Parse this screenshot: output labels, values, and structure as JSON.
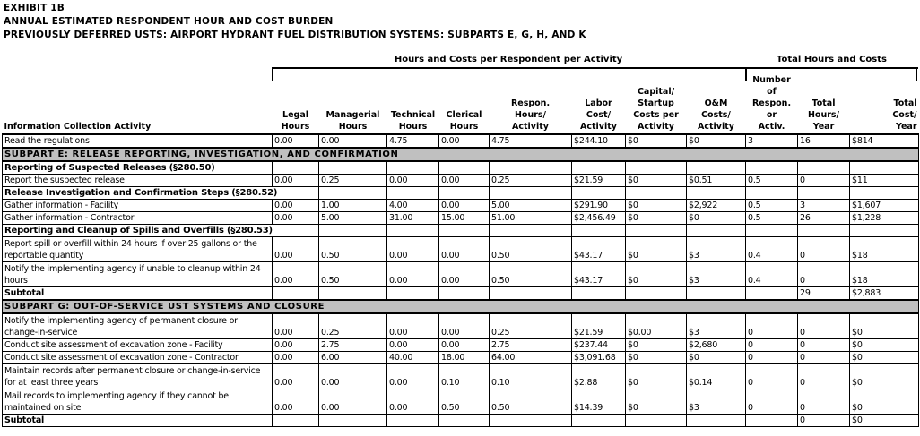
{
  "titles": [
    "EXHIBIT 1B",
    "ANNUAL ESTIMATED RESPONDENT HOUR AND COST BURDEN",
    "PREVIOUSLY DEFERRED USTS:  AIRPORT HYDRANT FUEL DISTRIBUTION SYSTEMS: SUBPARTS E, G, H, AND K"
  ],
  "group_headers": {
    "per_activity": "Hours and Costs per Respondent per Activity",
    "totals": "Total Hours and Costs"
  },
  "columns": [
    "Information Collection Activity",
    "Legal\nHours",
    "Managerial\nHours",
    "Technical\nHours",
    "Clerical\nHours",
    "Respon.\nHours/\nActivity",
    "Labor\nCost/\nActivity",
    "Capital/\nStartup\nCosts per\nActivity",
    "O&M\nCosts/\nActivity",
    "Number\nof\nRespon.\nor\nActiv.",
    "Total\nHours/\nYear",
    "Total\nCost/\nYear"
  ],
  "rows": [
    {
      "type": "data",
      "cells": [
        "Read the regulations",
        "0.00",
        "0.00",
        "4.75",
        "0.00",
        "4.75",
        "$244.10",
        "$0",
        "$0",
        "3",
        "16",
        "$814"
      ]
    },
    {
      "type": "section",
      "cells": [
        "SUBPART E:  RELEASE REPORTING, INVESTIGATION, AND CONFIRMATION"
      ]
    },
    {
      "type": "group",
      "cells": [
        "Reporting of Suspected Releases (§280.50)",
        "",
        "",
        "",
        "",
        "",
        "",
        "",
        "",
        "",
        "",
        ""
      ]
    },
    {
      "type": "data",
      "cells": [
        "Report the suspected release",
        "0.00",
        "0.25",
        "0.00",
        "0.00",
        "0.25",
        "$21.59",
        "$0",
        "$0.51",
        "0.5",
        "0",
        "$11"
      ]
    },
    {
      "type": "group",
      "span": true,
      "cells": [
        "Release Investigation and Confirmation Steps (§280.52)",
        "",
        "",
        "",
        "",
        "",
        "",
        "",
        "",
        "",
        ""
      ]
    },
    {
      "type": "data",
      "cells": [
        "Gather information - Facility",
        "0.00",
        "1.00",
        "4.00",
        "0.00",
        "5.00",
        "$291.90",
        "$0",
        "$2,922",
        "0.5",
        "3",
        "$1,607"
      ]
    },
    {
      "type": "data",
      "cells": [
        "Gather information - Contractor",
        "0.00",
        "5.00",
        "31.00",
        "15.00",
        "51.00",
        "$2,456.49",
        "$0",
        "$0",
        "0.5",
        "26",
        "$1,228"
      ]
    },
    {
      "type": "group",
      "span": true,
      "cells": [
        "Reporting and Cleanup of Spills and Overfills (§280.53)",
        "",
        "",
        "",
        "",
        "",
        "",
        "",
        "",
        "",
        ""
      ]
    },
    {
      "type": "data",
      "tall": true,
      "cells": [
        "Report spill or overfill within 24 hours if over 25 gallons or the reportable quantity",
        "0.00",
        "0.50",
        "0.00",
        "0.00",
        "0.50",
        "$43.17",
        "$0",
        "$3",
        "0.4",
        "0",
        "$18"
      ]
    },
    {
      "type": "data",
      "tall": true,
      "cells": [
        "Notify the implementing agency if unable to cleanup within 24 hours",
        "0.00",
        "0.50",
        "0.00",
        "0.00",
        "0.50",
        "$43.17",
        "$0",
        "$3",
        "0.4",
        "0",
        "$18"
      ]
    },
    {
      "type": "subtotal",
      "cells": [
        "Subtotal",
        "",
        "",
        "",
        "",
        "",
        "",
        "",
        "",
        "",
        "29",
        "$2,883"
      ]
    },
    {
      "type": "section",
      "cells": [
        "SUBPART G:  OUT-OF-SERVICE UST SYSTEMS AND CLOSURE"
      ]
    },
    {
      "type": "data",
      "tall": true,
      "cells": [
        "Notify the implementing agency of permanent closure or change-in-service",
        "0.00",
        "0.25",
        "0.00",
        "0.00",
        "0.25",
        "$21.59",
        "$0.00",
        "$3",
        "0",
        "0",
        "$0"
      ]
    },
    {
      "type": "data",
      "cells": [
        "Conduct site assessment of excavation zone - Facility",
        "0.00",
        "2.75",
        "0.00",
        "0.00",
        "2.75",
        "$237.44",
        "$0",
        "$2,680",
        "0",
        "0",
        "$0"
      ]
    },
    {
      "type": "data",
      "cells": [
        "Conduct site assessment of excavation zone - Contractor",
        "0.00",
        "6.00",
        "40.00",
        "18.00",
        "64.00",
        "$3,091.68",
        "$0",
        "$0",
        "0",
        "0",
        "$0"
      ]
    },
    {
      "type": "data",
      "tall": true,
      "cells": [
        "Maintain records after permanent closure or change-in-service for at least three years",
        "0.00",
        "0.00",
        "0.00",
        "0.10",
        "0.10",
        "$2.88",
        "$0",
        "$0.14",
        "0",
        "0",
        "$0"
      ]
    },
    {
      "type": "data",
      "tall": true,
      "cells": [
        "Mail records to implementing agency if they cannot be maintained on site",
        "0.00",
        "0.00",
        "0.00",
        "0.50",
        "0.50",
        "$14.39",
        "$0",
        "$3",
        "0",
        "0",
        "$0"
      ]
    },
    {
      "type": "subtotal",
      "cells": [
        "Subtotal",
        "",
        "",
        "",
        "",
        "",
        "",
        "",
        "",
        "",
        "0",
        "$0"
      ]
    }
  ]
}
